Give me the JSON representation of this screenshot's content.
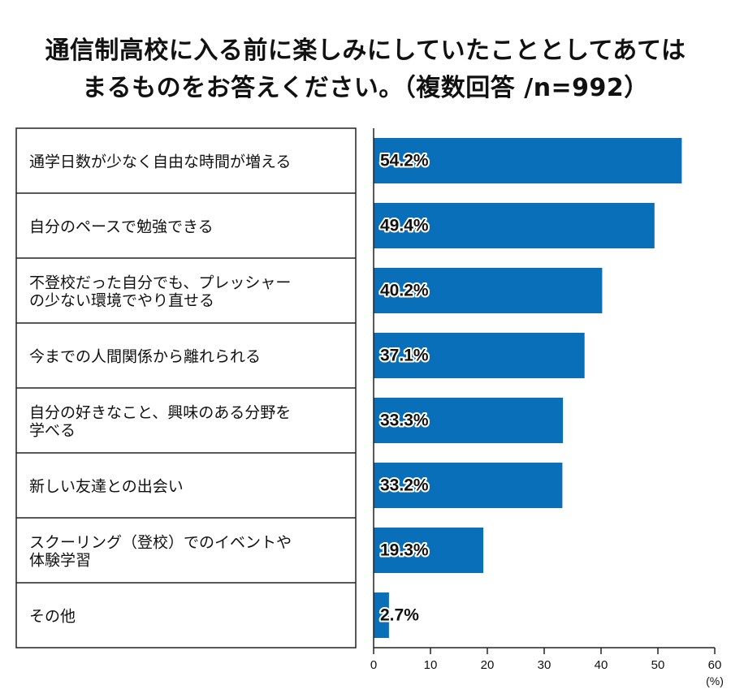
{
  "title": {
    "line1": "通信制高校に入る前に楽しみにしていたこととしてあては",
    "line2": "まるものをお答えください。（複数回答 /n=992）"
  },
  "chart_data": {
    "type": "bar",
    "orientation": "horizontal",
    "categories": [
      [
        "通学日数が少なく自由な時間が増える"
      ],
      [
        "自分のペースで勉強できる"
      ],
      [
        "不登校だった自分でも、プレッシャー",
        "の少ない環境でやり直せる"
      ],
      [
        "今までの人間関係から離れられる"
      ],
      [
        "自分の好きなこと、興味のある分野を",
        "学べる"
      ],
      [
        "新しい友達との出会い"
      ],
      [
        "スクーリング（登校）でのイベントや",
        "体験学習"
      ],
      [
        "その他"
      ]
    ],
    "values": [
      54.2,
      49.4,
      40.2,
      37.1,
      33.3,
      33.2,
      19.3,
      2.7
    ],
    "value_labels": [
      "54.2%",
      "49.4%",
      "40.2%",
      "37.1%",
      "33.3%",
      "33.2%",
      "19.3%",
      "2.7%"
    ],
    "x_ticks": [
      "0",
      "10",
      "20",
      "30",
      "40",
      "50",
      "60"
    ],
    "xlim": [
      0,
      60
    ],
    "unit_label": "(%)",
    "bar_color": "#0a6fb9"
  }
}
